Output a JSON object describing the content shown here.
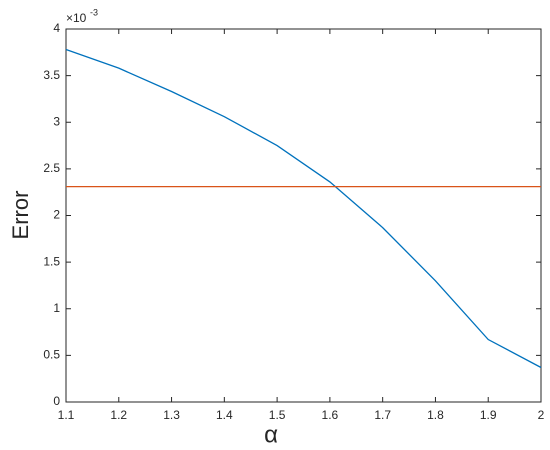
{
  "chart_data": {
    "type": "line",
    "xlabel": "α",
    "ylabel": "Error",
    "y_exponent_base": "×10",
    "y_exponent_power": "-3",
    "x": [
      1.1,
      1.2,
      1.3,
      1.4,
      1.5,
      1.6,
      1.7,
      1.8,
      1.9,
      2
    ],
    "series": [
      {
        "color": "#0072bd",
        "values": [
          3.78,
          3.58,
          3.33,
          3.06,
          2.75,
          2.36,
          1.87,
          1.3,
          0.67,
          0.37
        ]
      },
      {
        "color": "#d95319",
        "values": [
          2.31,
          2.31,
          2.31,
          2.31,
          2.31,
          2.31,
          2.31,
          2.31,
          2.31,
          2.31
        ]
      }
    ],
    "xlim": [
      1.1,
      2
    ],
    "xticks": [
      1.1,
      1.2,
      1.3,
      1.4,
      1.5,
      1.6,
      1.7,
      1.8,
      1.9,
      2
    ],
    "ylim": [
      0,
      4
    ],
    "yticks": [
      0,
      0.5,
      1,
      1.5,
      2,
      2.5,
      3,
      3.5,
      4
    ],
    "grid": false
  }
}
